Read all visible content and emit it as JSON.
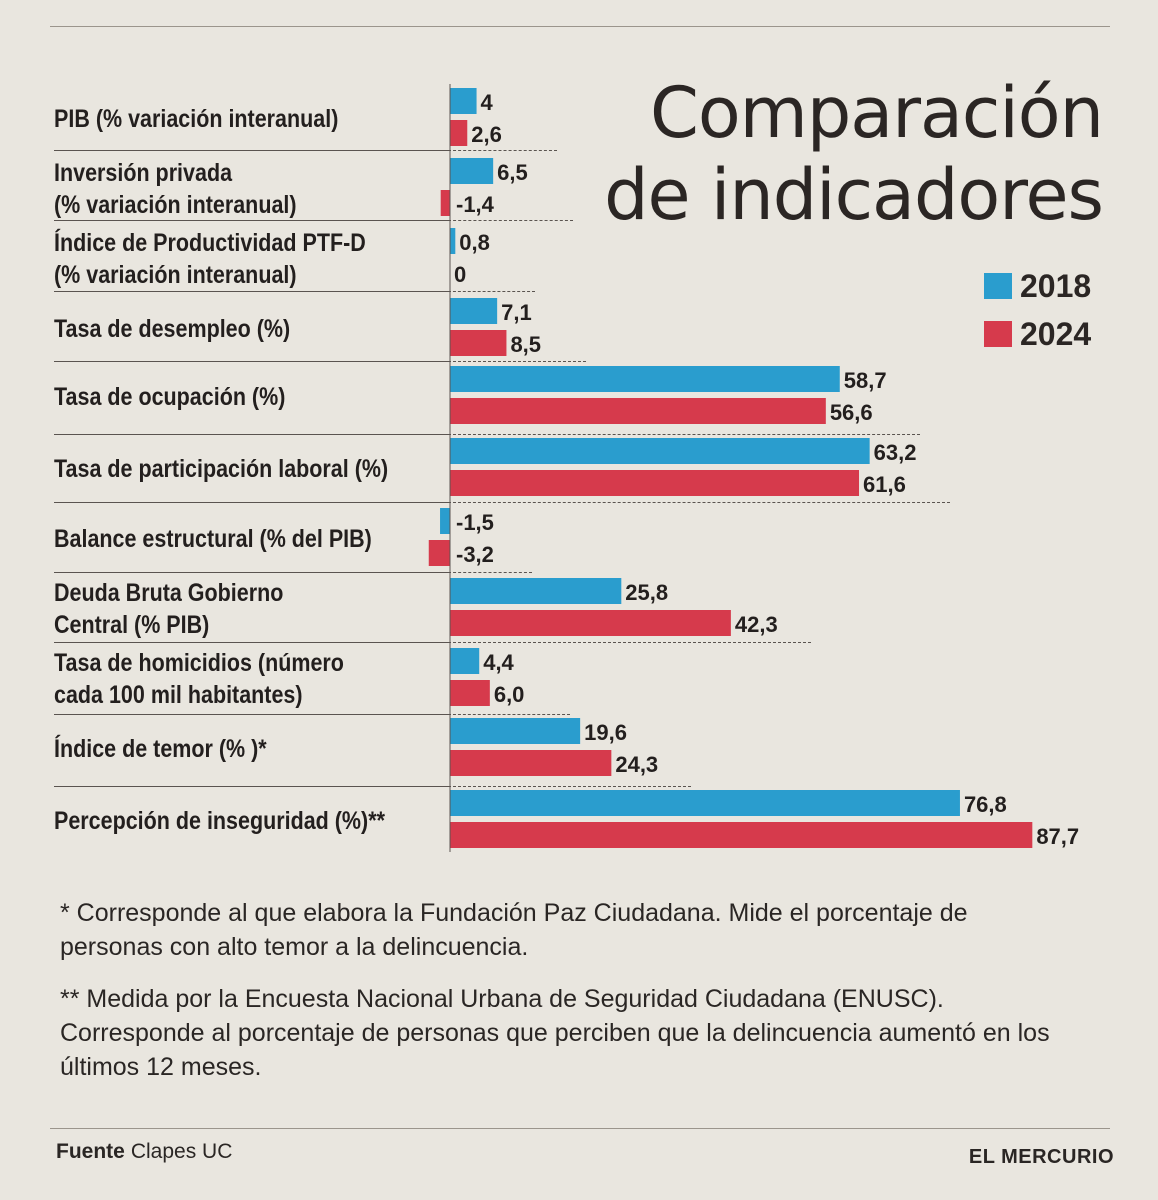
{
  "title_lines": [
    "Comparación",
    "de indicadores"
  ],
  "colors": {
    "series_2018": "#2a9dce",
    "series_2024": "#d63a4c",
    "background": "#e9e6df",
    "text": "#1f1c1b"
  },
  "legend": [
    {
      "label": "2018",
      "color": "#2a9dce"
    },
    {
      "label": "2024",
      "color": "#d63a4c"
    }
  ],
  "notes": {
    "note1": "* Corresponde al que elabora la Fundación Paz Ciudadana. Mide el porcentaje de personas con alto temor a la delincuencia.",
    "note2": "** Medida por la Encuesta Nacional Urbana de Seguridad Ciudadana (ENUSC). Corresponde al porcentaje de personas que perciben que la delincuencia aumentó en los últimos 12 meses."
  },
  "source": {
    "label": "Fuente",
    "value": "Clapes UC"
  },
  "brand": "EL MERCURIO",
  "chart_data": {
    "type": "bar",
    "orientation": "horizontal",
    "title": "Comparación de indicadores",
    "legend_position": "top-right",
    "categories": [
      [
        "PIB (% variación interanual)"
      ],
      [
        "Inversión privada",
        "(% variación interanual)"
      ],
      [
        "Índice de Productividad PTF-D",
        "(% variación interanual)"
      ],
      [
        "Tasa de desempleo (%)"
      ],
      [
        "Tasa de ocupación (%)"
      ],
      [
        "Tasa de participación laboral (%)"
      ],
      [
        "Balance estructural (% del PIB)"
      ],
      [
        "Deuda Bruta Gobierno",
        "Central (% PIB)"
      ],
      [
        "Tasa de homicidios (número",
        "cada 100 mil habitantes)"
      ],
      [
        "Índice de temor (% )*"
      ],
      [
        "Percepción de inseguridad (%)**"
      ]
    ],
    "series": [
      {
        "name": "2018",
        "values": [
          4,
          6.5,
          0.8,
          7.1,
          58.7,
          63.2,
          -1.5,
          25.8,
          4.4,
          19.6,
          76.8
        ],
        "labels": [
          "4",
          "6,5",
          "0,8",
          "7,1",
          "58,7",
          "63,2",
          "-1,5",
          "25,8",
          "4,4",
          "19,6",
          "76,8"
        ]
      },
      {
        "name": "2024",
        "values": [
          2.6,
          -1.4,
          0,
          8.5,
          56.6,
          61.6,
          -3.2,
          42.3,
          6.0,
          24.3,
          87.7
        ],
        "labels": [
          "2,6",
          "-1,4",
          "0",
          "8,5",
          "56,6",
          "61,6",
          "-3,2",
          "42,3",
          "6,0",
          "24,3",
          "87,7"
        ]
      }
    ],
    "xlim": [
      -3.2,
      87.7
    ]
  }
}
